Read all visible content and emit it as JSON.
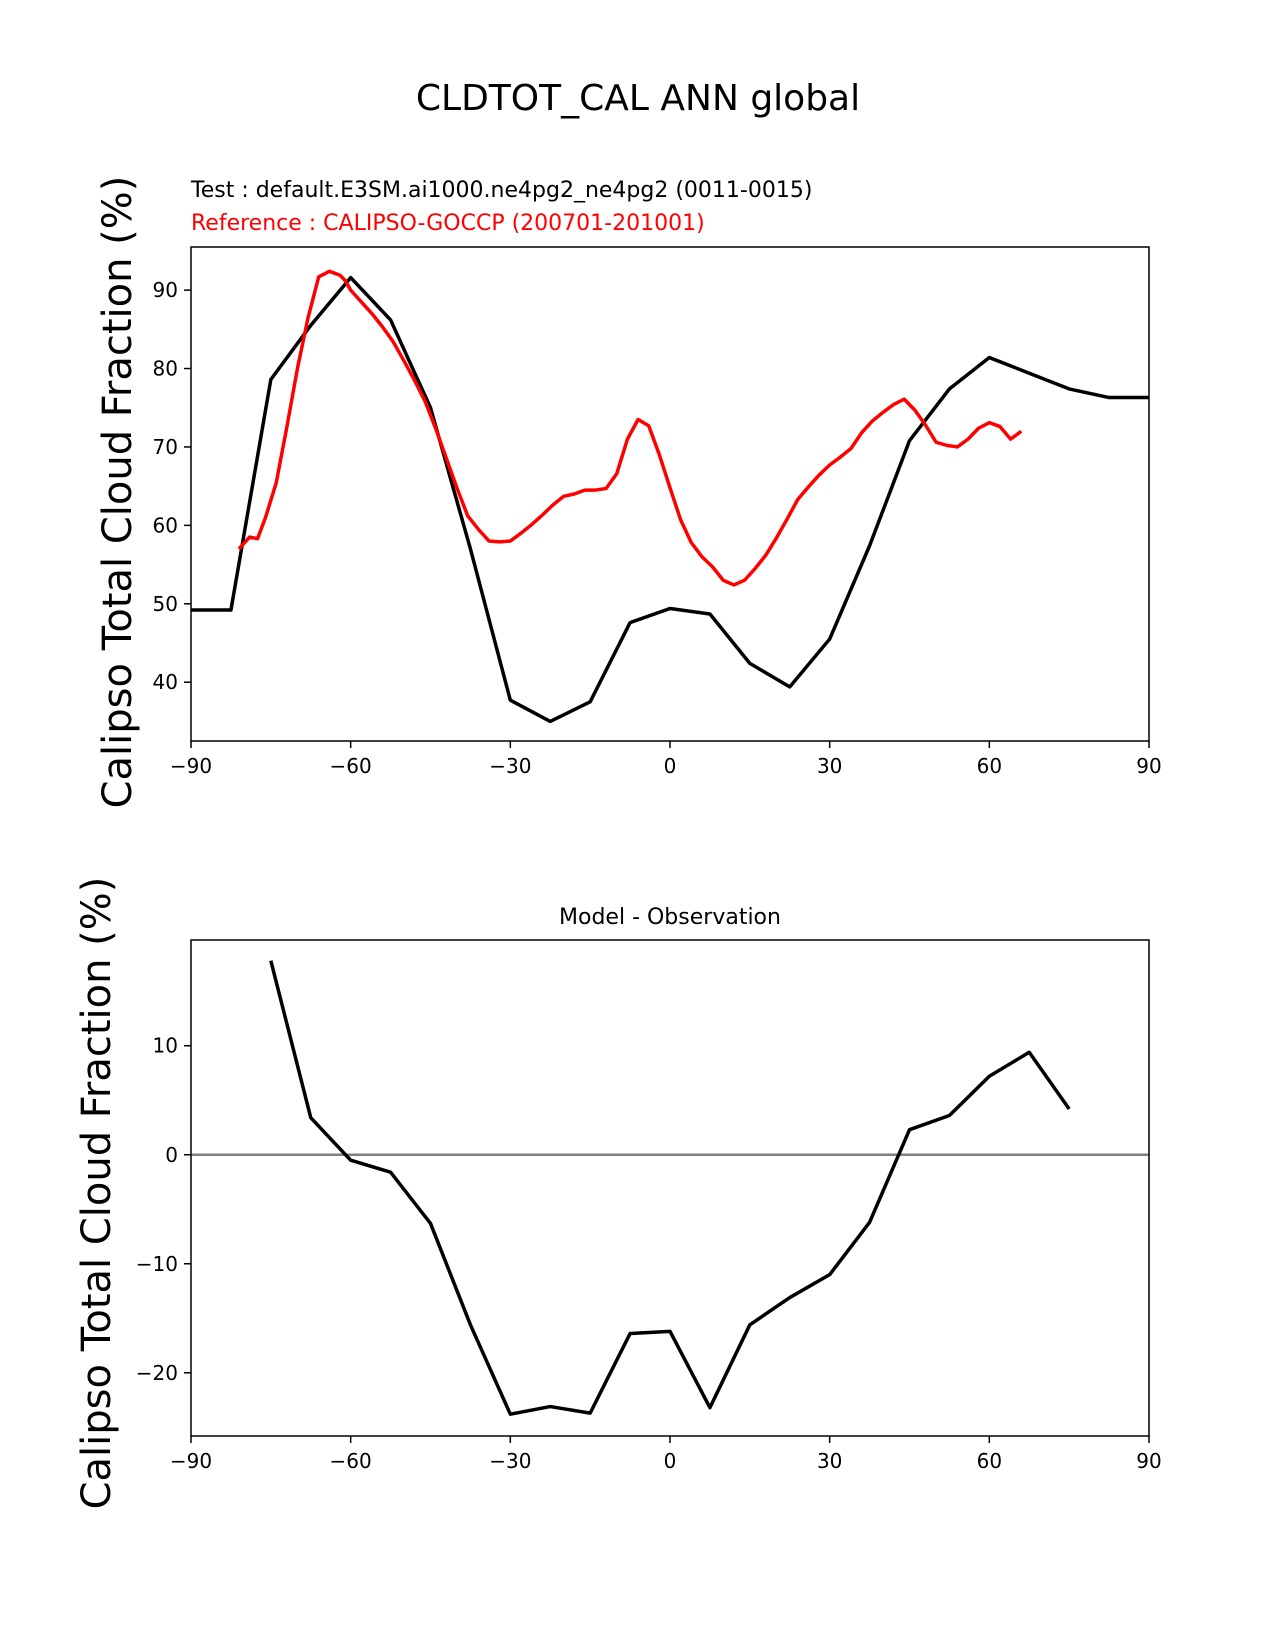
{
  "chart_data": [
    {
      "type": "line",
      "suptitle": "CLDTOT_CAL ANN global",
      "test_label": "Test : default.E3SM.ai1000.ne4pg2_ne4pg2 (0011-0015)",
      "reference_label": "Reference : CALIPSO-GOCCP (200701-201001)",
      "ylabel": "Calipso Total Cloud Fraction (%)",
      "xlim": [
        -90,
        90
      ],
      "ylim": [
        32.5,
        95.5
      ],
      "xticks": [
        -90,
        -60,
        -30,
        0,
        30,
        60,
        90
      ],
      "yticks": [
        40,
        50,
        60,
        70,
        80,
        90
      ],
      "grid": false,
      "series": [
        {
          "color": "#000000",
          "x": [
            -90,
            -82.5,
            -75,
            -67.5,
            -60,
            -52.5,
            -45,
            -37.5,
            -30,
            -22.5,
            -15,
            -7.5,
            0,
            7.5,
            15,
            22.5,
            30,
            37.5,
            45,
            52.5,
            60,
            67.5,
            75,
            82.5,
            90
          ],
          "y": [
            49.2,
            49.2,
            78.6,
            85.5,
            91.6,
            86.2,
            75.0,
            57.0,
            37.7,
            35.0,
            37.5,
            47.6,
            49.4,
            48.7,
            42.4,
            39.4,
            45.5,
            57.4,
            70.8,
            77.4,
            81.4,
            79.4,
            77.4,
            76.3,
            76.3
          ]
        },
        {
          "color": "#ff0000",
          "x": [
            -81,
            -79,
            -77.5,
            -76,
            -74,
            -72,
            -70,
            -68,
            -66,
            -64,
            -62,
            -61,
            -60,
            -58,
            -56,
            -54,
            -52,
            -50,
            -48,
            -46,
            -44,
            -42,
            -40,
            -38,
            -36,
            -34,
            -32,
            -30,
            -28,
            -26,
            -24,
            -22,
            -20,
            -18,
            -16,
            -14,
            -12,
            -10,
            -8,
            -6,
            -4,
            -2,
            0,
            2,
            4,
            6,
            8,
            10,
            12,
            14,
            16,
            18,
            20,
            22,
            24,
            26,
            28,
            30,
            32,
            34,
            36,
            38,
            40,
            42,
            44,
            46,
            48,
            50,
            52,
            54,
            56,
            58,
            60,
            62,
            64,
            66,
            68,
            70,
            72,
            74,
            76,
            78,
            80,
            82
          ],
          "y": [
            57.0,
            58.5,
            58.3,
            61.0,
            65.4,
            72.5,
            80.0,
            86.5,
            91.7,
            92.4,
            91.9,
            91.2,
            90.0,
            88.5,
            87.0,
            85.3,
            83.4,
            81.0,
            78.5,
            75.8,
            72.3,
            68.5,
            64.7,
            61.2,
            59.5,
            58.0,
            57.9,
            58.0,
            59.0,
            60.1,
            61.3,
            62.6,
            63.7,
            64.0,
            64.5,
            64.5,
            64.7,
            66.6,
            71.0,
            73.5,
            72.7,
            69.0,
            64.8,
            60.7,
            57.8,
            56.0,
            54.7,
            53.0,
            52.4,
            53.0,
            54.5,
            56.2,
            58.4,
            60.8,
            63.3,
            64.9,
            66.4,
            67.7,
            68.7,
            69.8,
            71.8,
            73.3,
            74.4,
            75.4,
            76.1,
            74.7,
            72.8,
            70.6,
            70.2,
            70.0,
            71.0,
            72.4,
            73.1,
            72.6,
            71.0,
            72.0,
            null,
            null,
            null,
            null,
            null,
            null,
            null,
            null
          ]
        }
      ]
    },
    {
      "type": "line",
      "title": "Model - Observation",
      "ylabel": "Calipso Total Cloud Fraction (%)",
      "xlim": [
        -90,
        90
      ],
      "ylim": [
        -25.8,
        19.7
      ],
      "xticks": [
        -90,
        -60,
        -30,
        0,
        30,
        60,
        90
      ],
      "yticks": [
        -20,
        -10,
        0,
        10
      ],
      "grid": false,
      "zero_line_color": "#808080",
      "series": [
        {
          "color": "#000000",
          "x": [
            -75,
            -67.5,
            -60,
            -52.5,
            -45,
            -37.5,
            -30,
            -22.5,
            -15,
            -7.5,
            0,
            7.5,
            15,
            22.5,
            30,
            37.5,
            45,
            52.5,
            60,
            67.5,
            75
          ],
          "y": [
            17.8,
            3.4,
            -0.5,
            -1.6,
            -6.3,
            -15.6,
            -23.8,
            -23.1,
            -23.7,
            -16.4,
            -16.2,
            -23.2,
            -15.6,
            -13.1,
            -11.0,
            -6.2,
            2.3,
            3.6,
            7.2,
            9.4,
            4.2
          ]
        }
      ]
    }
  ]
}
